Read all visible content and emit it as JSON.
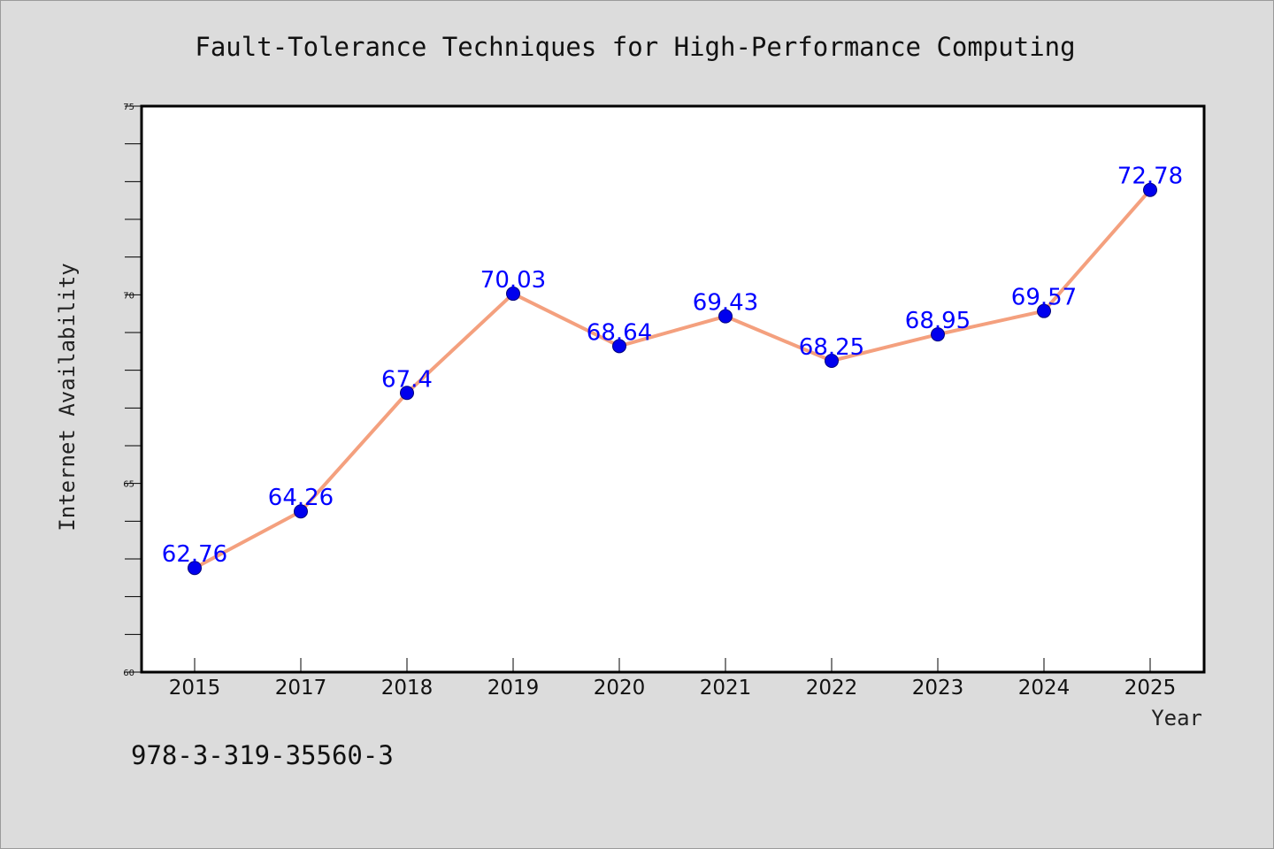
{
  "chart_data": {
    "type": "line",
    "title": "Fault-Tolerance Techniques for High-Performance Computing",
    "xlabel": "Year",
    "ylabel": "Internet Availability",
    "categories": [
      "2015",
      "2017",
      "2018",
      "2019",
      "2020",
      "2021",
      "2022",
      "2023",
      "2024",
      "2025"
    ],
    "values": [
      62.76,
      64.26,
      67.4,
      70.03,
      68.64,
      69.43,
      68.25,
      68.95,
      69.57,
      72.78
    ],
    "data_labels": [
      "62.76",
      "64.26",
      "67.4",
      "70.03",
      "68.64",
      "69.43",
      "68.25",
      "68.95",
      "69.57",
      "72.78"
    ],
    "ylim": [
      60,
      75
    ],
    "yticks": [
      "60",
      "65",
      "70",
      "75"
    ],
    "grid": false,
    "colors": {
      "line": "#f4a07e",
      "marker": "#0000ee",
      "label": "#0000ff",
      "background": "#dcdcdc",
      "plot_background": "#ffffff"
    }
  },
  "footnote": "978-3-319-35560-3"
}
